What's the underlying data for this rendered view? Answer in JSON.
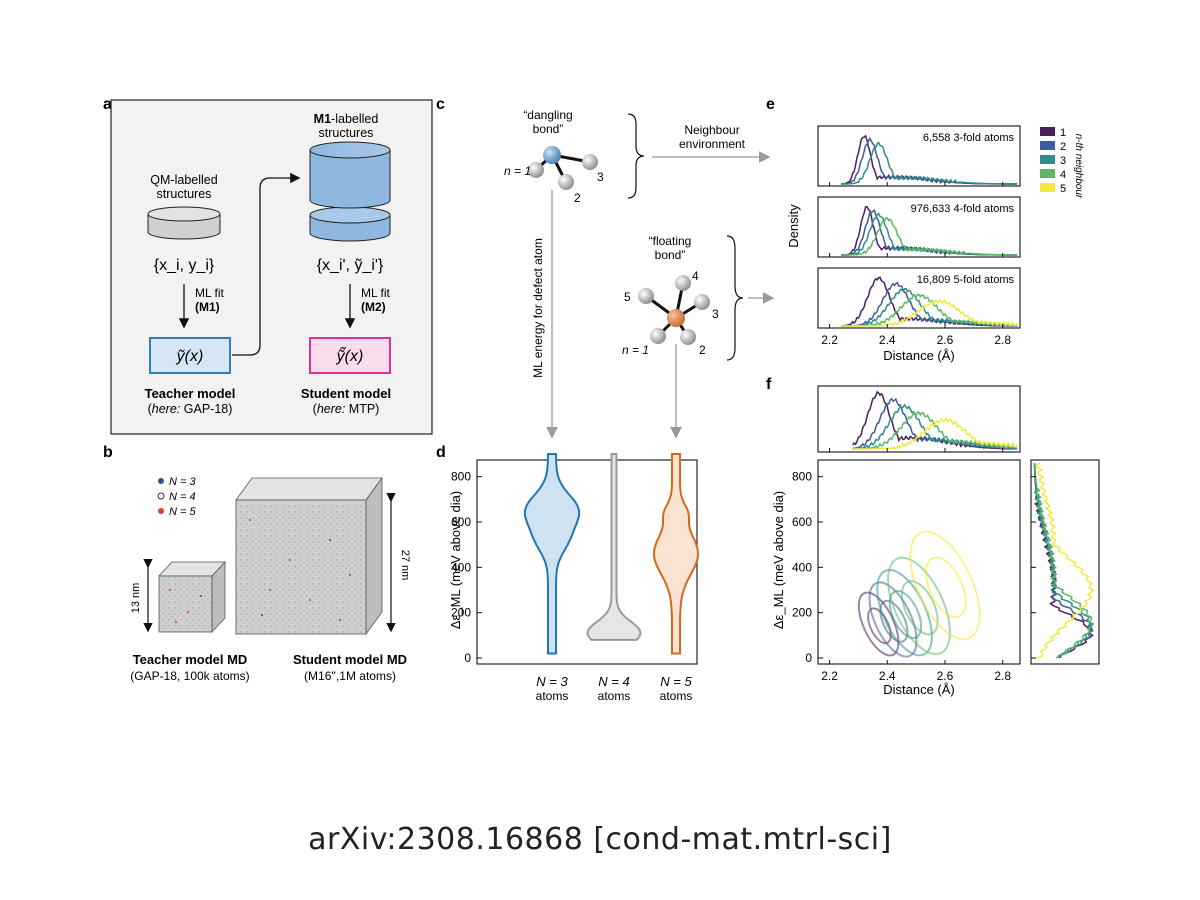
{
  "footer": "arXiv:2308.16868 [cond-mat.mtrl-sci]",
  "colors": {
    "blue": "#1f77b4",
    "grey": "#9a9a9a",
    "orange": "#d2691e",
    "teacher_box": "#2f7ebf",
    "student_box": "#e0338f",
    "n1": "#4b1f5e",
    "n2": "#3f5b99",
    "n3": "#2b8f8c",
    "n4": "#5bb862",
    "n5": "#f4e83a",
    "N3_dot": "#2d4f9e",
    "N5_dot": "#e03b2b"
  },
  "panel_a": {
    "label": "a",
    "qm_line1": "QM-labelled",
    "qm_line2": "structures",
    "qm_data": "{x_i, y_i}",
    "m1_bold": "M1",
    "m1_rest": "-labelled",
    "m1_line2": "structures",
    "m1_data": "{x_i', ỹ_i'}",
    "fit1_line1": "ML fit",
    "fit1_line2": "(M1)",
    "fit2_line1": "ML fit",
    "fit2_line2": "(M2)",
    "teacher_fn": "ỹ(x)",
    "student_fn": "ỹ̃(x)",
    "teacher_title": "Teacher model",
    "teacher_here": "here:",
    "teacher_model": " GAP-18)",
    "student_title": "Student model",
    "student_here": "here:",
    "student_model": " MTP)"
  },
  "panel_b": {
    "label": "b",
    "legend": [
      "N = 3",
      "N = 4",
      "N = 5"
    ],
    "small_size": "13 nm",
    "large_size": "27 nm",
    "teacher_title": "Teacher model MD",
    "teacher_sub": "(GAP-18, 100k atoms)",
    "student_title": "Student model MD",
    "student_sub": "(M16'',1M atoms)"
  },
  "panel_c": {
    "label": "c",
    "dangling_line1": "“dangling",
    "dangling_line2": "bond”",
    "floating_line1": "“floating",
    "floating_line2": "bond”",
    "neighbour_line1": "Neighbour",
    "neighbour_line2": "environment",
    "ml_energy": "ML energy for defect atom",
    "dangling_numbers": [
      "n = 1",
      "2",
      "3"
    ],
    "floating_numbers": [
      "n = 1",
      "2",
      "3",
      "4",
      "5"
    ]
  },
  "panel_d": {
    "label": "d",
    "ylabel": "Δε_ML (meV above dia)",
    "yticks": [
      "0",
      "200",
      "400",
      "600",
      "800"
    ],
    "categories": [
      "N = 3",
      "N = 4",
      "N = 5"
    ],
    "cat_sub": "atoms"
  },
  "panel_e": {
    "label": "e",
    "ylabel": "Density",
    "xlabel": "Distance (Å)",
    "xticks": [
      "2.2",
      "2.4",
      "2.6",
      "2.8"
    ],
    "subplots": [
      "6,558 3-fold atoms",
      "976,633 4-fold atoms",
      "16,809 5-fold atoms"
    ],
    "legend_title": "n-th neighbour",
    "legend": [
      "1",
      "2",
      "3",
      "4",
      "5"
    ]
  },
  "panel_f": {
    "label": "f",
    "ylabel": "Δε_ML (meV above dia)",
    "yticks": [
      "0",
      "200",
      "400",
      "600",
      "800"
    ],
    "xlabel": "Distance (Å)",
    "xticks": [
      "2.2",
      "2.4",
      "2.6",
      "2.8"
    ]
  },
  "chart_data": [
    {
      "type": "violin",
      "panel": "d",
      "categories": [
        "N = 3",
        "N = 4",
        "N = 5"
      ],
      "ylim": [
        0,
        900
      ],
      "ylabel": "Δε_ML (meV above dia)",
      "series": [
        {
          "category": "N = 3",
          "min": 20,
          "max": 900,
          "peaks": [
            660,
            520
          ]
        },
        {
          "category": "N = 4",
          "min": 80,
          "max": 900,
          "peaks": [
            110
          ]
        },
        {
          "category": "N = 5",
          "min": 20,
          "max": 900,
          "peaks": [
            480,
            640
          ]
        }
      ]
    },
    {
      "type": "line",
      "panel": "e",
      "xlabel": "Distance (Å)",
      "ylabel": "Density",
      "xlim": [
        2.16,
        2.86
      ],
      "groups": [
        {
          "title": "6,558 3-fold atoms",
          "peaks": {
            "1": 2.32,
            "2": 2.34,
            "3": 2.37
          }
        },
        {
          "title": "976,633 4-fold atoms",
          "peaks": {
            "1": 2.33,
            "2": 2.35,
            "3": 2.37,
            "4": 2.4
          }
        },
        {
          "title": "16,809 5-fold atoms",
          "peaks": {
            "1": 2.37,
            "2": 2.43,
            "3": 2.46,
            "4": 2.51,
            "5": 2.58
          }
        }
      ]
    },
    {
      "type": "contour",
      "panel": "f",
      "xlabel": "Distance (Å)",
      "ylabel": "Δε_ML (meV above dia)",
      "xlim": [
        2.16,
        2.86
      ],
      "ylim": [
        0,
        900
      ],
      "centers": [
        {
          "n": "1",
          "x": 2.37,
          "y": 150
        },
        {
          "n": "2",
          "x": 2.42,
          "y": 170
        },
        {
          "n": "3",
          "x": 2.46,
          "y": 200
        },
        {
          "n": "4",
          "x": 2.51,
          "y": 230
        },
        {
          "n": "5",
          "x": 2.6,
          "y": 320
        }
      ]
    }
  ]
}
